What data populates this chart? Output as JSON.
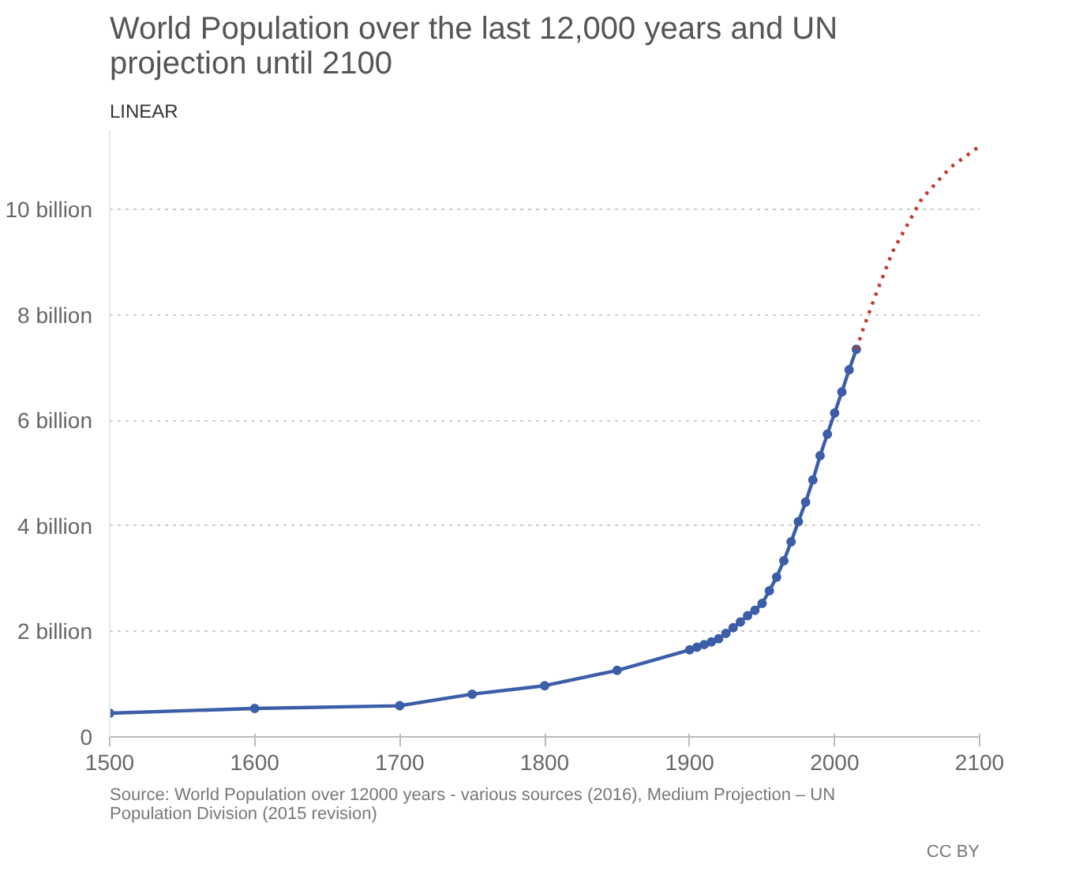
{
  "chart_data": {
    "type": "line",
    "title": "World Population over the last 12,000 years and UN projection until 2100",
    "subtitle": "LINEAR",
    "annotations": [
      "Source: World Population over 12000 years - various sources (2016), Medium Projection – UN Population Division (2015 revision)",
      "CC BY"
    ],
    "series": [
      {
        "color": "#3c5ea8",
        "marker": "circle",
        "line_style": "solid",
        "x": [
          1500,
          1600,
          1700,
          1750,
          1800,
          1850,
          1900,
          1905,
          1910,
          1915,
          1920,
          1925,
          1930,
          1935,
          1940,
          1945,
          1950,
          1955,
          1960,
          1965,
          1970,
          1975,
          1980,
          1985,
          1990,
          1995,
          2000,
          2005,
          2010,
          2015
        ],
        "values": [
          0.45,
          0.54,
          0.59,
          0.81,
          0.97,
          1.26,
          1.65,
          1.7,
          1.75,
          1.8,
          1.86,
          1.96,
          2.07,
          2.18,
          2.3,
          2.4,
          2.53,
          2.77,
          3.03,
          3.34,
          3.7,
          4.08,
          4.45,
          4.87,
          5.33,
          5.74,
          6.14,
          6.54,
          6.96,
          7.35
        ]
      },
      {
        "color": "#c0392b",
        "marker": "none",
        "line_style": "dotted",
        "x": [
          2015,
          2020,
          2030,
          2040,
          2050,
          2060,
          2070,
          2080,
          2090,
          2100
        ],
        "values": [
          7.35,
          7.76,
          8.5,
          9.2,
          9.7,
          10.2,
          10.5,
          10.8,
          11.0,
          11.2
        ]
      }
    ],
    "xlim": [
      1500,
      2100
    ],
    "xticks": [
      1500,
      1600,
      1700,
      1800,
      1900,
      2000,
      2100
    ],
    "ylim": [
      0,
      11.5
    ],
    "yticks": [
      {
        "value": 0,
        "label": "0"
      },
      {
        "value": 2,
        "label": "2 billion"
      },
      {
        "value": 4,
        "label": "4 billion"
      },
      {
        "value": 6,
        "label": "6 billion"
      },
      {
        "value": 8,
        "label": "8 billion"
      },
      {
        "value": 10,
        "label": "10 billion"
      }
    ],
    "grid": "y"
  }
}
